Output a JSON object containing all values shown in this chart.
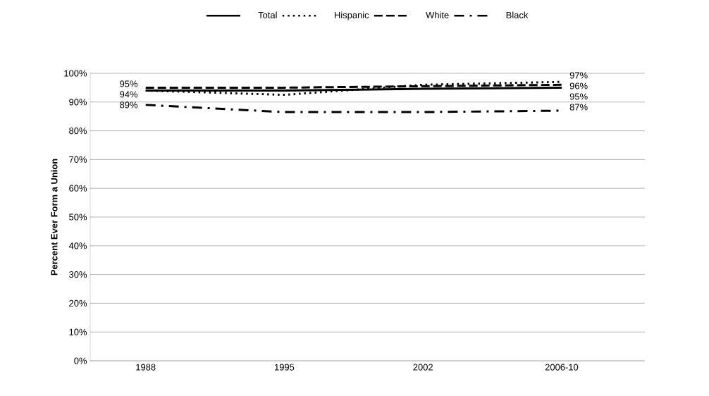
{
  "chart_data": {
    "type": "line",
    "ylabel": "Percent Ever Form a Union",
    "categories": [
      "1988",
      "1995",
      "2002",
      "2006-10"
    ],
    "series": [
      {
        "name": "Total",
        "color": "#000000",
        "line_style": "solid",
        "values": [
          94,
          94,
          94.6,
          95
        ],
        "value_labels": [
          "94%",
          null,
          null,
          "95%"
        ]
      },
      {
        "name": "Hispanic",
        "color": "#000000",
        "line_style": "dotted",
        "values": [
          94,
          92.5,
          96,
          97
        ],
        "value_labels": [
          null,
          null,
          null,
          "97%"
        ]
      },
      {
        "name": "White",
        "color": "#000000",
        "line_style": "dashed",
        "values": [
          95,
          95,
          95.5,
          96
        ],
        "value_labels": [
          "95%",
          null,
          null,
          "96%"
        ]
      },
      {
        "name": "Black",
        "color": "#000000",
        "line_style": "dashdot",
        "values": [
          89,
          86.5,
          86.5,
          87
        ],
        "value_labels": [
          "89%",
          null,
          null,
          "87%"
        ]
      }
    ],
    "ylim": [
      0,
      100
    ],
    "yticks": [
      {
        "value": 0,
        "label": "0%"
      },
      {
        "value": 10,
        "label": "10%"
      },
      {
        "value": 20,
        "label": "20%"
      },
      {
        "value": 30,
        "label": "30%"
      },
      {
        "value": 40,
        "label": "40%"
      },
      {
        "value": 50,
        "label": "50%"
      },
      {
        "value": 60,
        "label": "60%"
      },
      {
        "value": 70,
        "label": "70%"
      },
      {
        "value": 80,
        "label": "80%"
      },
      {
        "value": 90,
        "label": "90%"
      },
      {
        "value": 100,
        "label": "100%"
      }
    ],
    "grid": "y",
    "legend": "top"
  }
}
